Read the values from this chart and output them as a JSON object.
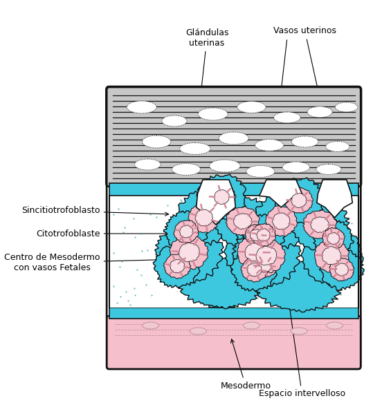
{
  "bg_color": "#ffffff",
  "cyan": "#3ec8e0",
  "cyan_dark": "#2ab0c8",
  "pink": "#f5c0cc",
  "pink_light": "#fad4dc",
  "dark": "#111111",
  "gray_endo": "#c8c8c8",
  "white": "#ffffff",
  "labels": {
    "glandulas": "Glándulas\nuterinas",
    "vasos": "Vasos uterinos",
    "sincitio": "Sincitiotrofoblasto",
    "citotro": "Citotrofoblaste",
    "centro": "Centro de Mesodermo\ncon vasos Fetales",
    "mesodermo": "Mesodermo",
    "espacio": "Espacio intervelloso"
  },
  "fontsize": 9
}
